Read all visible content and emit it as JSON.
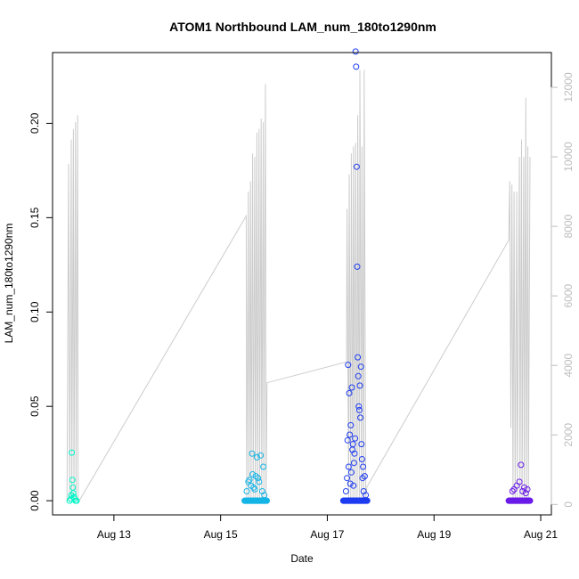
{
  "chart_data": {
    "type": "scatter",
    "title": "ATOM1 Northbound LAM_num_180to1290nm",
    "xlabel": "Date",
    "ylabel": "LAM_num_180to1290nm",
    "x_ticks": [
      "Aug 13",
      "Aug 15",
      "Aug 17",
      "Aug 19",
      "Aug 21"
    ],
    "x_tick_days": [
      13,
      15,
      17,
      19,
      21
    ],
    "xlim_days": [
      11.85,
      21.2
    ],
    "y_ticks": [
      "0.00",
      "0.05",
      "0.10",
      "0.15",
      "0.20"
    ],
    "ylim": [
      -0.0075,
      0.2375
    ],
    "y2_ticks": [
      "0",
      "2000",
      "4000",
      "6000",
      "8000",
      "10000",
      "12000"
    ],
    "y2lim": [
      -300,
      13000
    ],
    "grid": false,
    "series": [
      {
        "color": "#00f5c8",
        "x_days": [
          12.17,
          12.19,
          12.2,
          12.21,
          12.22,
          12.23,
          12.24,
          12.25,
          12.26,
          12.28,
          12.3
        ],
        "values": [
          0,
          0.001,
          0.003,
          0.0255,
          0.011,
          0.007,
          0.004,
          0.002,
          0.001,
          0,
          0
        ]
      },
      {
        "color": "#14b4e6",
        "x_days": [
          15.46,
          15.49,
          15.52,
          15.54,
          15.57,
          15.59,
          15.6,
          15.62,
          15.64,
          15.66,
          15.68,
          15.7,
          15.72,
          15.75,
          15.78,
          15.8,
          15.82,
          15.86
        ],
        "values": [
          0,
          0.005,
          0.01,
          0.011,
          0.008,
          0.025,
          0.014,
          0.007,
          0.006,
          0.013,
          0.023,
          0.012,
          0.01,
          0.024,
          0.005,
          0.018,
          0.003,
          0
        ],
        "baseline_range": [
          15.45,
          15.87
        ]
      },
      {
        "color": "#1e3cf0",
        "x_days": [
          17.35,
          17.37,
          17.38,
          17.39,
          17.4,
          17.41,
          17.42,
          17.43,
          17.44,
          17.45,
          17.46,
          17.47,
          17.48,
          17.49,
          17.5,
          17.51,
          17.52,
          17.53,
          17.54,
          17.55,
          17.56,
          17.57,
          17.58,
          17.59,
          17.6,
          17.61,
          17.62,
          17.63,
          17.64,
          17.65,
          17.66,
          17.67,
          17.68,
          17.7,
          17.72
        ],
        "values": [
          0.005,
          0.012,
          0.032,
          0.072,
          0.018,
          0.057,
          0.035,
          0.009,
          0.04,
          0.015,
          0.06,
          0.027,
          0.03,
          0.008,
          0.02,
          0.025,
          0.033,
          0.238,
          0.23,
          0.177,
          0.124,
          0.076,
          0.066,
          0.05,
          0.048,
          0.061,
          0.044,
          0.071,
          0.03,
          0.022,
          0.012,
          0.018,
          0.005,
          0.013,
          0.003
        ],
        "baseline_range": [
          17.3,
          17.75
        ]
      },
      {
        "color": "#6a1be8",
        "x_days": [
          20.44,
          20.47,
          20.5,
          20.55,
          20.6,
          20.63,
          20.66,
          20.69,
          20.72,
          20.75
        ],
        "values": [
          0,
          0.005,
          0.006,
          0.008,
          0.01,
          0.019,
          0.005,
          0.007,
          0.004,
          0.006
        ],
        "baseline_range": [
          20.4,
          20.8
        ]
      }
    ],
    "secondary_line": {
      "color": "#cccccc",
      "x_days": [
        12.12,
        12.15,
        12.17,
        12.2,
        12.21,
        12.24,
        12.25,
        12.28,
        12.29,
        12.32,
        12.33,
        15.48,
        15.49,
        15.52,
        15.53,
        15.56,
        15.57,
        15.6,
        15.61,
        15.64,
        15.65,
        15.68,
        15.69,
        15.72,
        15.73,
        15.76,
        15.77,
        15.8,
        15.81,
        15.84,
        15.85,
        15.87,
        17.36,
        17.37,
        17.4,
        17.41,
        17.44,
        17.45,
        17.48,
        17.49,
        17.52,
        17.53,
        17.56,
        17.57,
        17.6,
        17.61,
        17.64,
        17.65,
        17.68,
        17.69,
        17.72,
        17.74,
        20.4,
        20.42,
        20.44,
        20.46,
        20.48,
        20.5,
        20.52,
        20.55,
        20.56,
        20.6,
        20.61,
        20.64,
        20.65,
        20.68,
        20.69,
        20.72,
        20.73,
        20.76,
        20.77,
        20.8
      ],
      "values": [
        50,
        9800,
        100,
        10500,
        100,
        10800,
        100,
        11000,
        100,
        11200,
        50,
        8300,
        100,
        9000,
        200,
        9300,
        150,
        10100,
        200,
        10000,
        150,
        10700,
        200,
        10800,
        150,
        11100,
        150,
        11000,
        200,
        12100,
        150,
        3500,
        4100,
        8500,
        200,
        9500,
        150,
        10100,
        150,
        10300,
        200,
        10400,
        200,
        11200,
        150,
        12500,
        200,
        10300,
        150,
        12500,
        200,
        500,
        7600,
        9300,
        2200,
        9200,
        150,
        9000,
        150,
        9000,
        150,
        10000,
        150,
        10500,
        150,
        10000,
        150,
        11700,
        150,
        10300,
        150,
        10000
      ]
    }
  }
}
